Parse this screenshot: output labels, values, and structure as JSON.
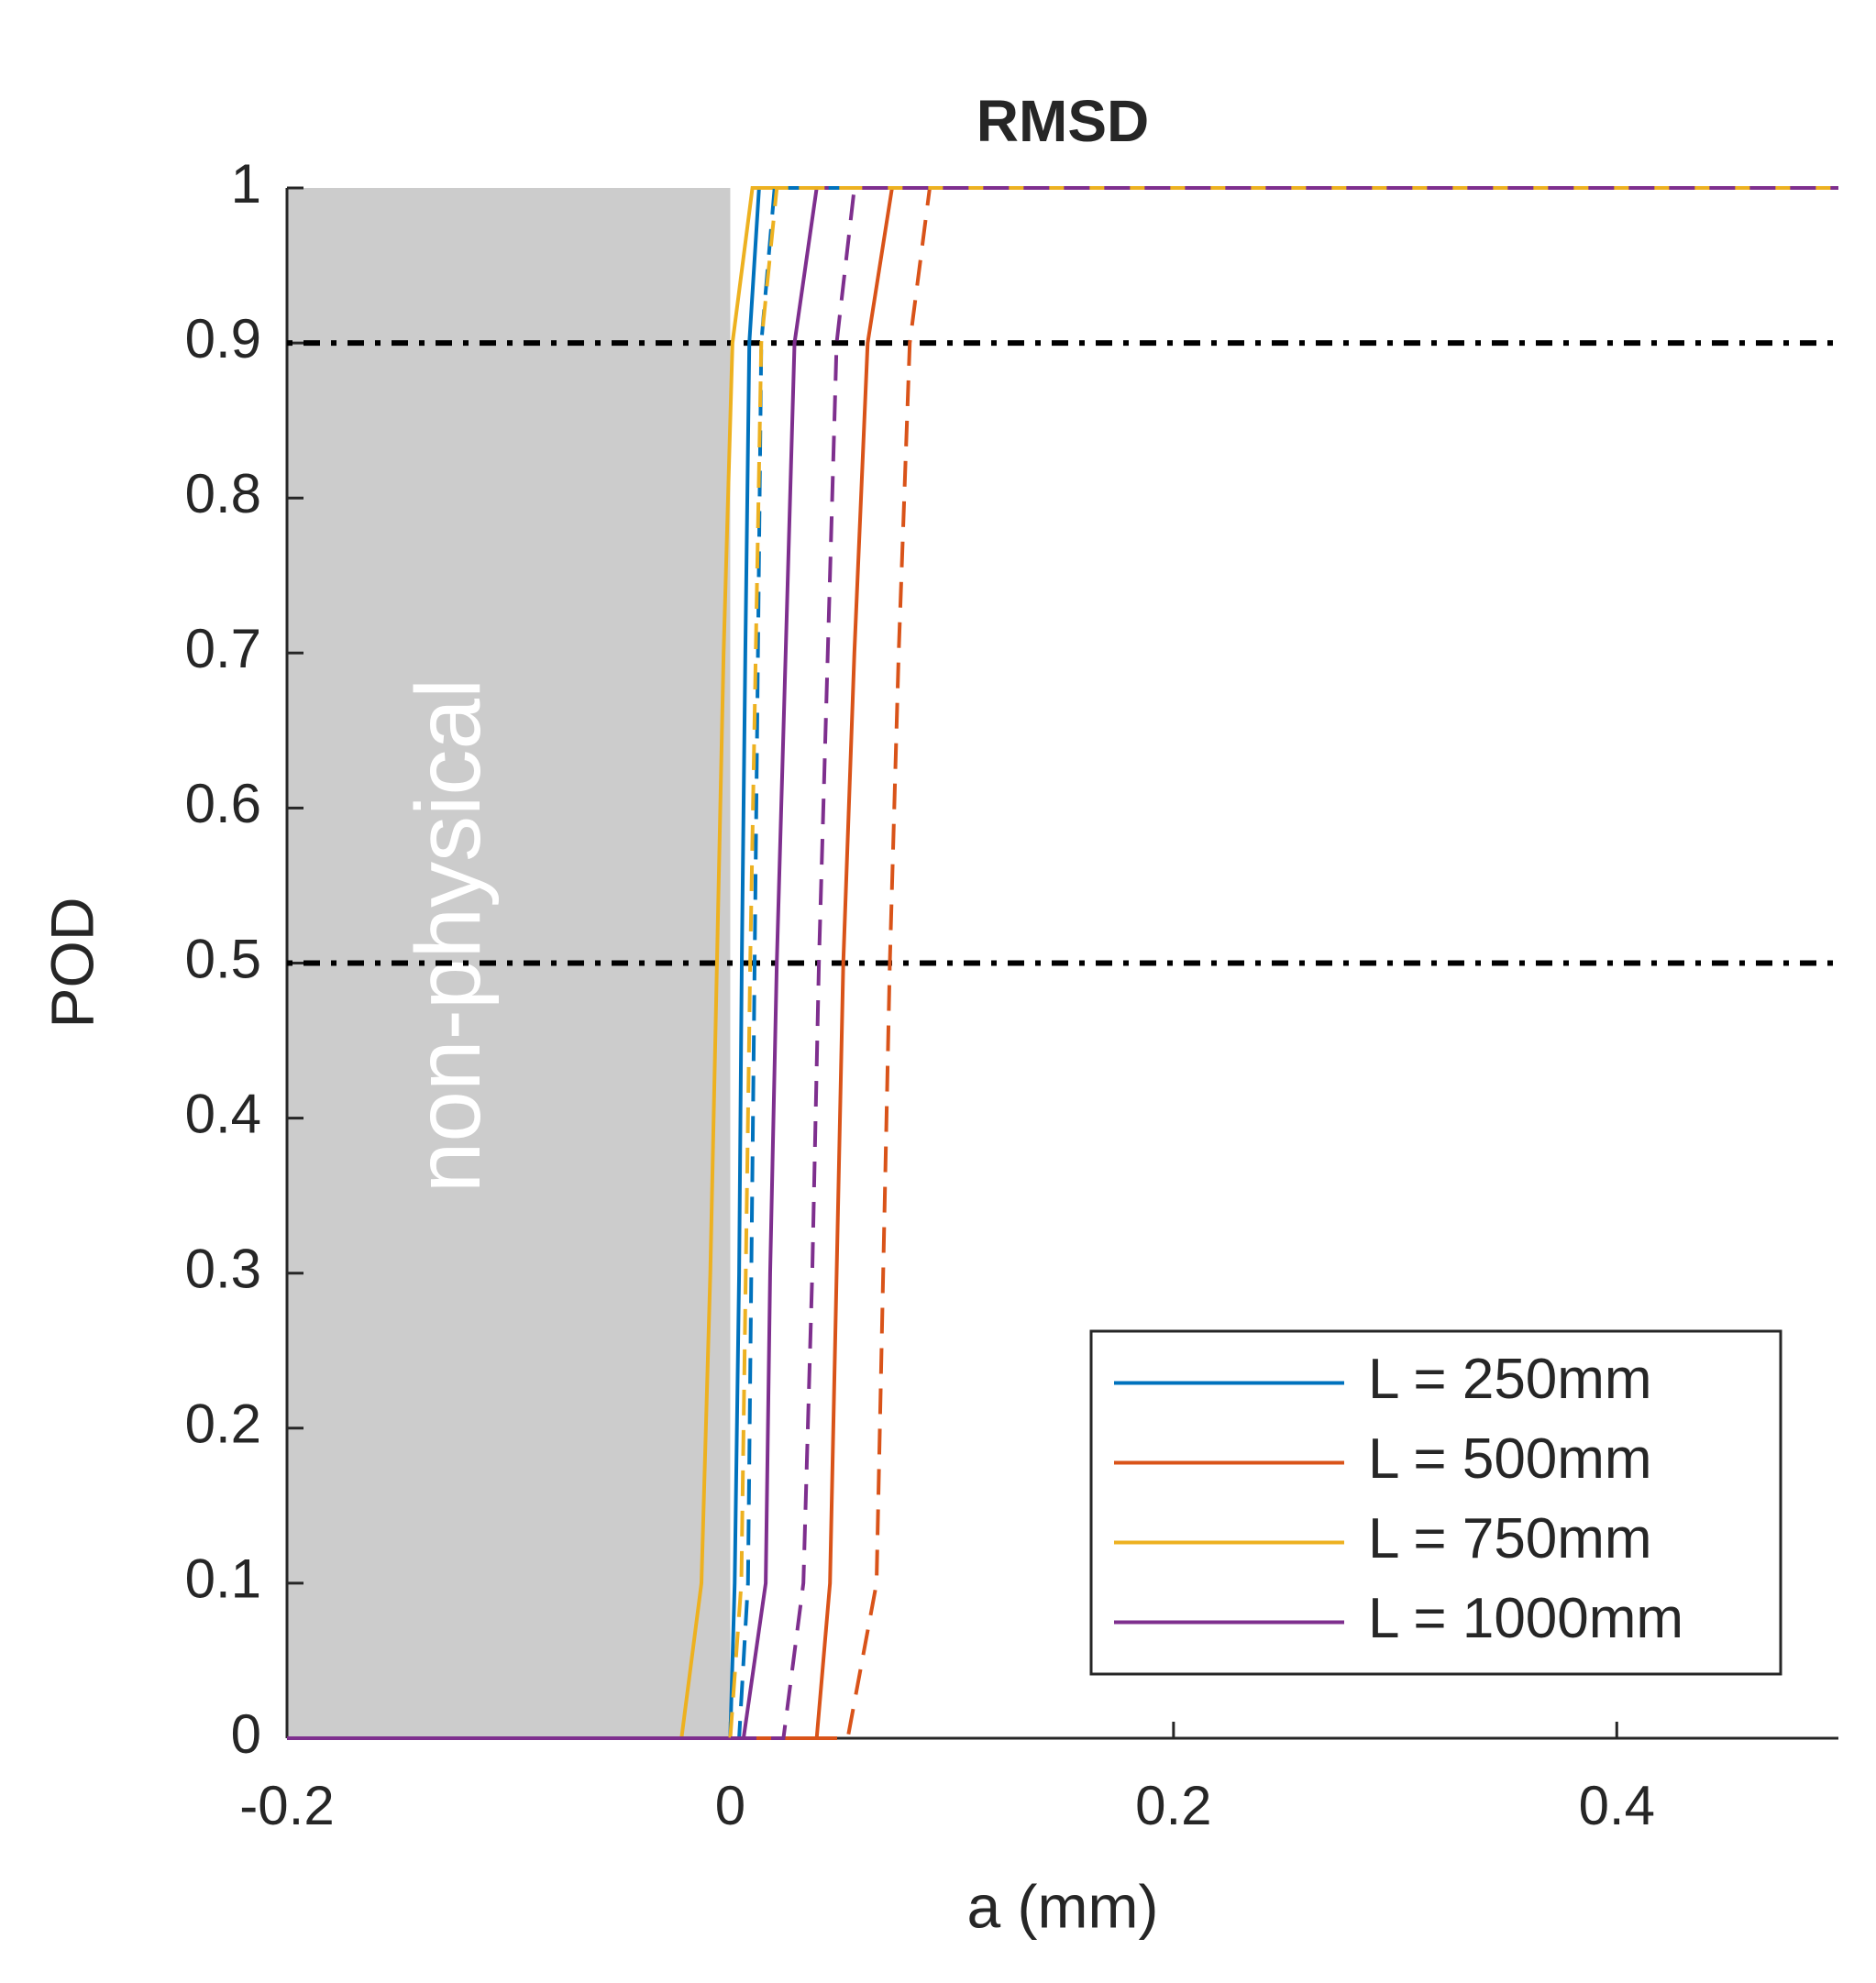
{
  "chart_data": {
    "type": "line",
    "title": "RMSD",
    "x_label": "a (mm)",
    "y_label": "POD",
    "xlim": [
      -0.2,
      0.5
    ],
    "ylim": [
      0,
      1
    ],
    "xticks": [
      -0.2,
      0,
      0.2,
      0.4
    ],
    "yticks": [
      0,
      0.1,
      0.2,
      0.3,
      0.4,
      0.5,
      0.6,
      0.7,
      0.8,
      0.9,
      1
    ],
    "shaded_region": {
      "x": [
        -0.2,
        0
      ],
      "color": "#cccccc",
      "label": "non-physical"
    },
    "hlines": [
      0.5,
      0.9
    ],
    "legend_position": "lower right",
    "series": [
      {
        "name": "L = 250mm",
        "color": "#0072bd",
        "dashed": false,
        "x": [
          -0.2,
          0.0,
          0.002,
          0.004,
          0.0052,
          0.0068,
          0.0086,
          0.013,
          0.5
        ],
        "values": [
          0,
          0,
          0.1,
          0.3,
          0.5,
          0.7,
          0.9,
          1,
          1
        ]
      },
      {
        "name": "L = 500mm",
        "color": "#d95319",
        "dashed": false,
        "x": [
          -0.2,
          0.039,
          0.045,
          0.048,
          0.051,
          0.056,
          0.062,
          0.073,
          0.5
        ],
        "values": [
          0,
          0,
          0.1,
          0.3,
          0.5,
          0.7,
          0.9,
          1,
          1
        ]
      },
      {
        "name": "L = 750mm",
        "color": "#edb120",
        "dashed": false,
        "x": [
          -0.2,
          -0.022,
          -0.013,
          -0.009,
          -0.006,
          -0.003,
          0.001,
          0.01,
          0.5
        ],
        "values": [
          0,
          0,
          0.1,
          0.3,
          0.5,
          0.7,
          0.9,
          1,
          1
        ]
      },
      {
        "name": "L = 1000mm",
        "color": "#7e2f8e",
        "dashed": false,
        "x": [
          -0.2,
          0.006,
          0.016,
          0.018,
          0.021,
          0.025,
          0.029,
          0.039,
          0.5
        ],
        "values": [
          0,
          0,
          0.1,
          0.3,
          0.5,
          0.7,
          0.9,
          1,
          1
        ]
      },
      {
        "color": "#0072bd",
        "dashed": true,
        "x": [
          -0.2,
          0.004,
          0.008,
          0.0095,
          0.011,
          0.0125,
          0.014,
          0.02,
          0.5
        ],
        "values": [
          0,
          0,
          0.1,
          0.3,
          0.5,
          0.7,
          0.9,
          1,
          1
        ]
      },
      {
        "color": "#d95319",
        "dashed": true,
        "x": [
          -0.2,
          0.053,
          0.066,
          0.069,
          0.072,
          0.076,
          0.081,
          0.09,
          0.5
        ],
        "values": [
          0,
          0,
          0.1,
          0.3,
          0.5,
          0.7,
          0.9,
          1,
          1
        ]
      },
      {
        "color": "#edb120",
        "dashed": true,
        "x": [
          -0.2,
          0.0,
          0.005,
          0.007,
          0.009,
          0.0115,
          0.014,
          0.021,
          0.5
        ],
        "values": [
          0,
          0,
          0.1,
          0.3,
          0.5,
          0.7,
          0.9,
          1,
          1
        ]
      },
      {
        "color": "#7e2f8e",
        "dashed": true,
        "x": [
          -0.2,
          0.024,
          0.033,
          0.037,
          0.04,
          0.044,
          0.048,
          0.056,
          0.5
        ],
        "values": [
          0,
          0,
          0.1,
          0.3,
          0.5,
          0.7,
          0.9,
          1,
          1
        ]
      }
    ]
  }
}
